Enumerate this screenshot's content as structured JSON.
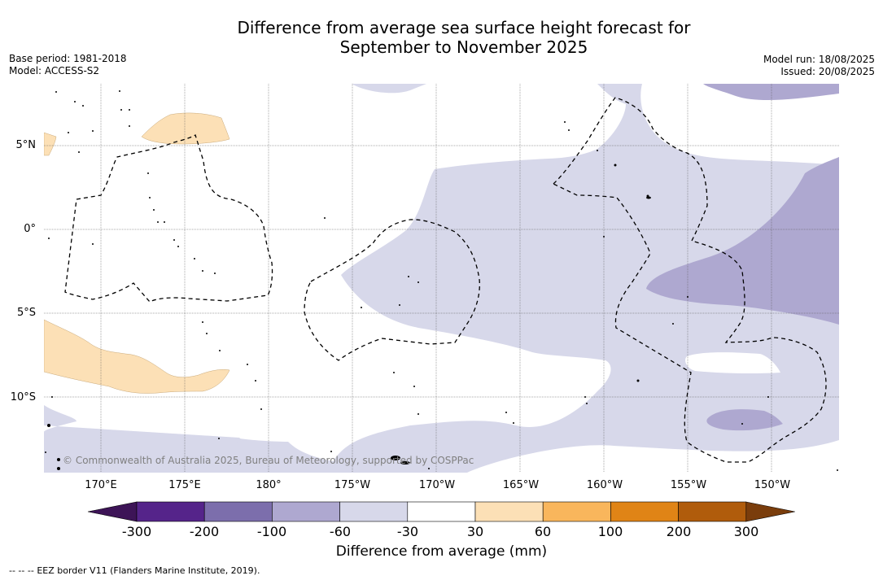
{
  "title_line1": "Difference from average sea surface height forecast for",
  "title_line2": "September to November 2025",
  "meta_left": {
    "base_period": "Base period: 1981-2018",
    "model": "Model: ACCESS-S2"
  },
  "meta_right": {
    "model_run": "Model run: 18/08/2025",
    "issued": "Issued: 20/08/2025"
  },
  "map": {
    "lat_labels": [
      "5°N",
      "0°",
      "5°S",
      "10°S"
    ],
    "lon_labels": [
      "170°E",
      "175°E",
      "180°",
      "175°W",
      "170°W",
      "165°W",
      "160°W",
      "155°W",
      "150°W"
    ],
    "copyright": "© Commonwealth of Australia 2025, Bureau of Meteorology, supported by COSPPac",
    "legend_line": "EEZ border V11 (Flanders Marine Institute, 2019)."
  },
  "colorbar": {
    "title": "Difference from average (mm)",
    "tick_labels": [
      "-300",
      "-200",
      "-100",
      "-60",
      "-30",
      "30",
      "60",
      "100",
      "200",
      "300"
    ],
    "colors": [
      "#3d1457",
      "#55248a",
      "#7c6eac",
      "#aea8d0",
      "#d7d8ea",
      "#ffffff",
      "#fce0b6",
      "#f9b65c",
      "#e08416",
      "#b05c0c",
      "#7a3d0c"
    ]
  },
  "footer": {
    "prefix": "--  --  --",
    "text": "EEZ border V11 (Flanders Marine Institute, 2019)."
  }
}
